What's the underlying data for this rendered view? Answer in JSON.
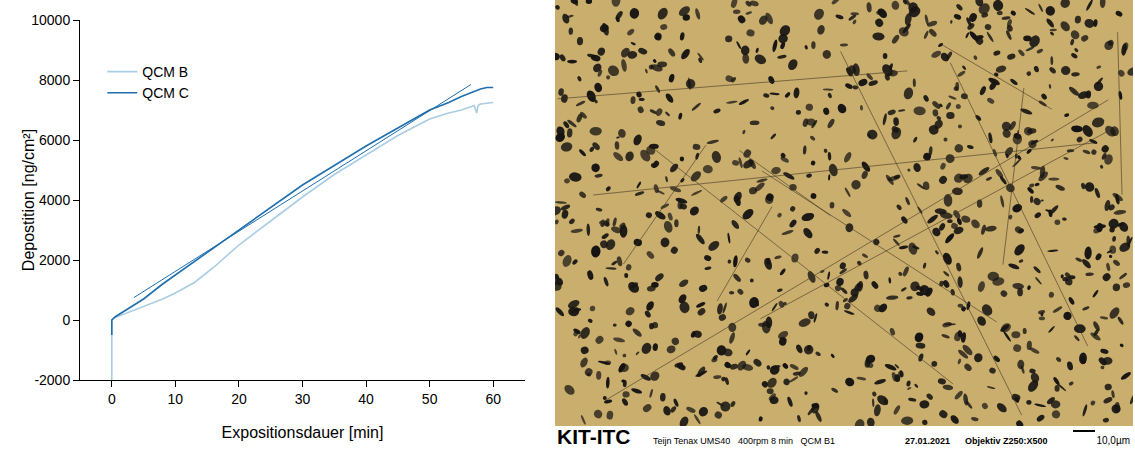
{
  "chart_data": {
    "type": "line",
    "x_label": "Expositionsdauer [min]",
    "y_label": "Depostition [ng/cm²]",
    "xlim": [
      -5,
      65
    ],
    "xticks": [
      0,
      10,
      20,
      30,
      40,
      50,
      60
    ],
    "ylim": [
      -2000,
      10000
    ],
    "yticks": [
      -2000,
      0,
      2000,
      4000,
      6000,
      8000,
      10000
    ],
    "grid": false,
    "legend": "upper left",
    "series": [
      {
        "name": "QCM B",
        "color": "#a9cde3",
        "x": [
          0,
          0,
          0.5,
          2,
          5,
          8,
          10,
          13,
          16,
          20,
          25,
          30,
          35,
          40,
          45,
          50,
          53,
          55,
          57,
          57.4,
          57.6,
          58,
          60
        ],
        "values": [
          -2000,
          0,
          80,
          200,
          450,
          700,
          900,
          1250,
          1750,
          2500,
          3300,
          4100,
          4850,
          5500,
          6150,
          6700,
          6900,
          7000,
          7150,
          6900,
          7150,
          7200,
          7250
        ]
      },
      {
        "name": "QCM C",
        "color": "#1f6fae",
        "x": [
          0,
          0,
          0.5,
          2,
          5,
          8,
          10,
          15,
          20,
          25,
          30,
          35,
          40,
          45,
          50,
          53,
          55,
          58,
          59,
          60
        ],
        "values": [
          -500,
          0,
          100,
          300,
          700,
          1200,
          1500,
          2250,
          3000,
          3750,
          4500,
          5150,
          5800,
          6400,
          7000,
          7250,
          7450,
          7700,
          7750,
          7750
        ]
      },
      {
        "color": "#1f6fae",
        "line_style": "thin",
        "x": [
          3.5,
          56.5
        ],
        "values": [
          750,
          7850
        ]
      }
    ]
  },
  "image": {
    "logo": "KIT-ITC",
    "caption": "Teijn Tenax UMS40   400rpm 8 min   QCM B1",
    "date": "27.01.2021",
    "objective": "Objektiv Z250:X500",
    "scale_bar": "10,0µm"
  }
}
